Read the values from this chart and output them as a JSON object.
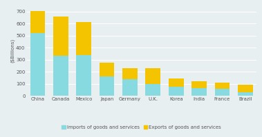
{
  "categories": [
    "China",
    "Canada",
    "Mexico",
    "Japan",
    "Germany",
    "U.K.",
    "Korea",
    "India",
    "France",
    "Brazil"
  ],
  "imports": [
    524,
    332,
    338,
    160,
    140,
    100,
    75,
    65,
    60,
    30
  ],
  "exports": [
    180,
    328,
    274,
    118,
    90,
    128,
    70,
    57,
    50,
    65
  ],
  "import_color": "#87DADF",
  "export_color": "#F5C400",
  "ylabel": "($Billions)",
  "ylim": [
    0,
    750
  ],
  "yticks": [
    0,
    100,
    200,
    300,
    400,
    500,
    600,
    700
  ],
  "legend_imports": "Imports of goods and services",
  "legend_exports": "Exports of goods and services",
  "background_color": "#e8eff0",
  "plot_bg_color": "#e8eff0",
  "bar_width": 0.65,
  "grid_color": "#ffffff",
  "tick_label_fontsize": 5.0,
  "ylabel_fontsize": 5.0,
  "legend_fontsize": 5.0,
  "tick_color": "#555555"
}
